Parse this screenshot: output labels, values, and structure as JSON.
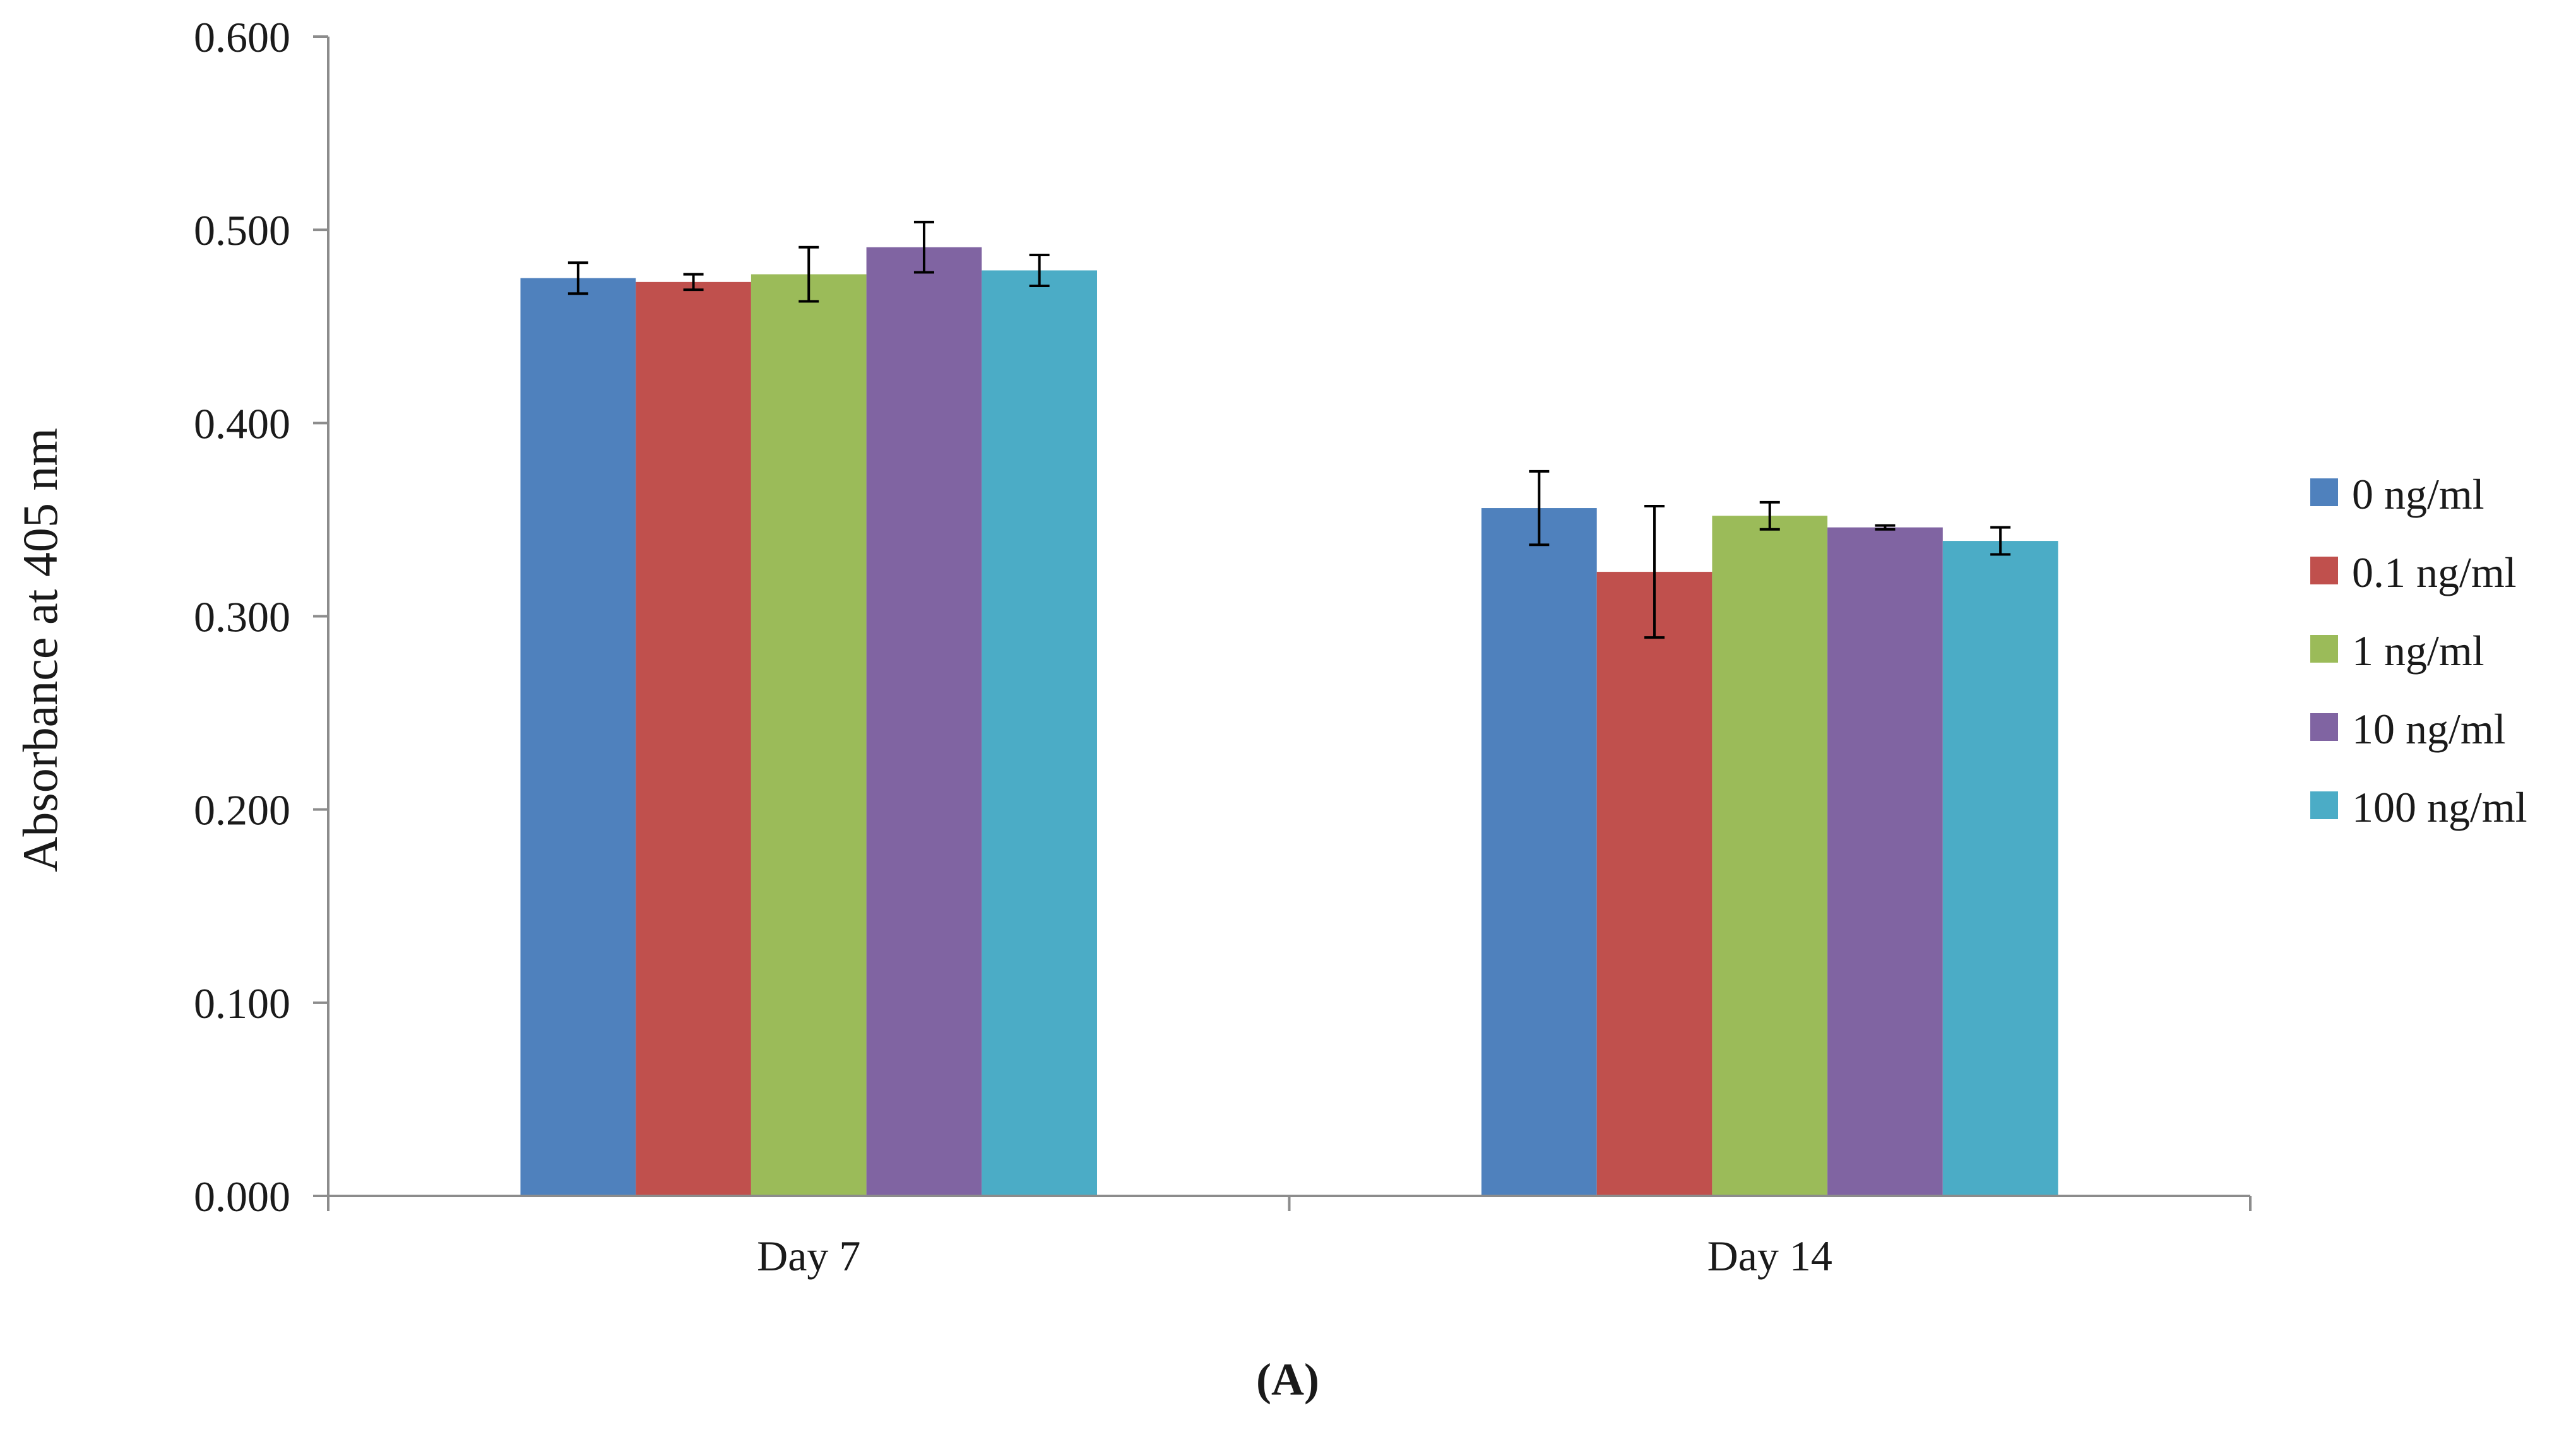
{
  "chart_data": {
    "type": "bar",
    "categories": [
      "Day 7",
      "Day 14"
    ],
    "series": [
      {
        "name": "0 ng/ml",
        "color": "#4F81BD",
        "values": [
          0.475,
          0.356
        ],
        "errors": [
          0.008,
          0.019
        ]
      },
      {
        "name": "0.1 ng/ml",
        "color": "#C0504D",
        "values": [
          0.473,
          0.323
        ],
        "errors": [
          0.004,
          0.034
        ]
      },
      {
        "name": "1 ng/ml",
        "color": "#9BBB59",
        "values": [
          0.477,
          0.352
        ],
        "errors": [
          0.014,
          0.007
        ]
      },
      {
        "name": "10 ng/ml",
        "color": "#8064A2",
        "values": [
          0.491,
          0.346
        ],
        "errors": [
          0.013,
          0.001
        ]
      },
      {
        "name": "100 ng/ml",
        "color": "#4BACC6",
        "values": [
          0.479,
          0.339
        ],
        "errors": [
          0.008,
          0.007
        ]
      }
    ],
    "ylabel": "Absorbance at 405 nm",
    "xlabel": "",
    "ylim": [
      0,
      0.6
    ],
    "yticks": [
      "0.000",
      "0.100",
      "0.200",
      "0.300",
      "0.400",
      "0.500",
      "0.600"
    ],
    "grid": false,
    "legend_position": "right",
    "panel_label": "(A)"
  }
}
